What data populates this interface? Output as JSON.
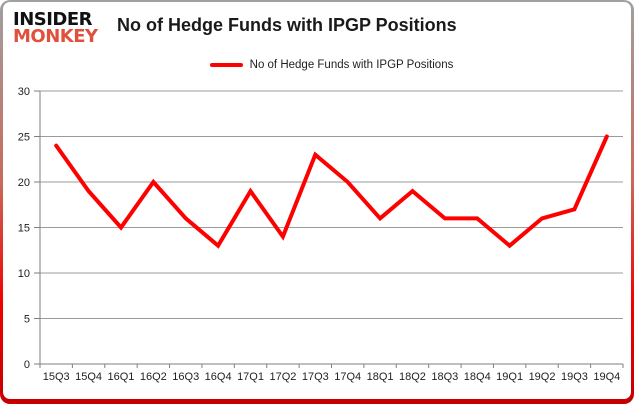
{
  "logo": {
    "line1": "INSIDER",
    "line2": "MONKEY"
  },
  "header": {
    "title": "No of Hedge Funds with IPGP Positions"
  },
  "legend": {
    "label": "No of Hedge Funds with IPGP Positions",
    "swatch_color": "#ff0000"
  },
  "chart_data": {
    "type": "line",
    "title": "No of Hedge Funds with IPGP Positions",
    "categories": [
      "15Q3",
      "15Q4",
      "16Q1",
      "16Q2",
      "16Q3",
      "16Q4",
      "17Q1",
      "17Q2",
      "17Q3",
      "17Q4",
      "18Q1",
      "18Q2",
      "18Q3",
      "18Q4",
      "19Q1",
      "19Q2",
      "19Q3",
      "19Q4"
    ],
    "series": [
      {
        "name": "No of Hedge Funds with IPGP Positions",
        "color": "#ff0000",
        "values": [
          24,
          19,
          15,
          20,
          16,
          13,
          19,
          14,
          23,
          20,
          16,
          19,
          16,
          16,
          13,
          16,
          17,
          25
        ]
      }
    ],
    "xlabel": "",
    "ylabel": "",
    "ylim": [
      0,
      30
    ],
    "ytick_step": 5,
    "grid": true,
    "legend_position": "top-center",
    "line_width": 4,
    "gridline_color": "#9b9b9b",
    "axis_color": "#7f7f7f",
    "label_color": "#1f1f1f",
    "label_font_size": 11
  }
}
